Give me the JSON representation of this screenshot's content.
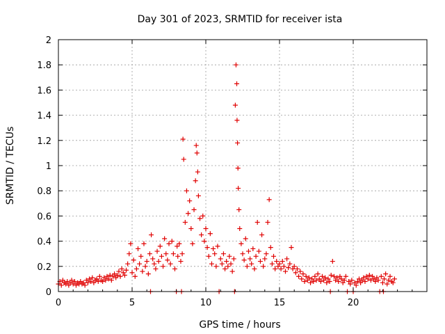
{
  "chart_data": {
    "type": "scatter",
    "title": "Day 301 of 2023, SRMTID for receiver ista",
    "xlabel": "GPS time / hours",
    "ylabel": "SRMTID / TECUs",
    "xlim": [
      0,
      25
    ],
    "ylim": [
      0,
      2
    ],
    "xticks": [
      0,
      5,
      10,
      15,
      20
    ],
    "yticks": [
      0,
      0.2,
      0.4,
      0.6,
      0.8,
      1,
      1.2,
      1.4,
      1.6,
      1.8,
      2
    ],
    "xtick_labels": [
      "0",
      "5",
      "10",
      "15",
      "20"
    ],
    "ytick_labels": [
      "0",
      "0.2",
      "0.4",
      "0.6",
      "0.8",
      "1",
      "1.2",
      "1.4",
      "1.6",
      "1.8",
      "2"
    ],
    "grid": true,
    "marker": "+",
    "color": "#e00000",
    "series": [
      {
        "name": "SRMTID",
        "points": [
          [
            0.0,
            0.06
          ],
          [
            0.1,
            0.08
          ],
          [
            0.2,
            0.05
          ],
          [
            0.3,
            0.09
          ],
          [
            0.4,
            0.07
          ],
          [
            0.5,
            0.06
          ],
          [
            0.6,
            0.08
          ],
          [
            0.7,
            0.05
          ],
          [
            0.8,
            0.07
          ],
          [
            0.9,
            0.09
          ],
          [
            1.0,
            0.06
          ],
          [
            1.1,
            0.08
          ],
          [
            1.2,
            0.05
          ],
          [
            1.3,
            0.07
          ],
          [
            1.4,
            0.06
          ],
          [
            1.5,
            0.08
          ],
          [
            1.6,
            0.06
          ],
          [
            1.7,
            0.07
          ],
          [
            1.8,
            0.05
          ],
          [
            1.9,
            0.09
          ],
          [
            2.0,
            0.07
          ],
          [
            2.1,
            0.1
          ],
          [
            2.2,
            0.08
          ],
          [
            2.3,
            0.11
          ],
          [
            2.4,
            0.07
          ],
          [
            2.5,
            0.09
          ],
          [
            2.6,
            0.1
          ],
          [
            2.7,
            0.08
          ],
          [
            2.8,
            0.12
          ],
          [
            2.9,
            0.09
          ],
          [
            3.0,
            0.08
          ],
          [
            3.1,
            0.11
          ],
          [
            3.2,
            0.09
          ],
          [
            3.3,
            0.12
          ],
          [
            3.4,
            0.1
          ],
          [
            3.5,
            0.13
          ],
          [
            3.6,
            0.09
          ],
          [
            3.7,
            0.12
          ],
          [
            3.8,
            0.14
          ],
          [
            3.9,
            0.11
          ],
          [
            4.0,
            0.13
          ],
          [
            4.1,
            0.16
          ],
          [
            4.2,
            0.12
          ],
          [
            4.3,
            0.18
          ],
          [
            4.4,
            0.15
          ],
          [
            4.5,
            0.13
          ],
          [
            4.6,
            0.17
          ],
          [
            4.7,
            0.22
          ],
          [
            4.8,
            0.3
          ],
          [
            4.9,
            0.38
          ],
          [
            5.0,
            0.15
          ],
          [
            5.1,
            0.25
          ],
          [
            5.2,
            0.12
          ],
          [
            5.3,
            0.18
          ],
          [
            5.4,
            0.34
          ],
          [
            5.5,
            0.22
          ],
          [
            5.6,
            0.28
          ],
          [
            5.7,
            0.16
          ],
          [
            5.8,
            0.38
          ],
          [
            5.9,
            0.2
          ],
          [
            6.0,
            0.24
          ],
          [
            6.1,
            0.14
          ],
          [
            6.2,
            0.3
          ],
          [
            6.25,
            0.0
          ],
          [
            6.3,
            0.45
          ],
          [
            6.4,
            0.26
          ],
          [
            6.5,
            0.22
          ],
          [
            6.6,
            0.18
          ],
          [
            6.7,
            0.32
          ],
          [
            6.8,
            0.24
          ],
          [
            6.9,
            0.36
          ],
          [
            7.0,
            0.28
          ],
          [
            7.1,
            0.2
          ],
          [
            7.2,
            0.42
          ],
          [
            7.3,
            0.3
          ],
          [
            7.4,
            0.25
          ],
          [
            7.5,
            0.38
          ],
          [
            7.6,
            0.22
          ],
          [
            7.7,
            0.4
          ],
          [
            7.8,
            0.3
          ],
          [
            7.9,
            0.18
          ],
          [
            8.0,
            0.0
          ],
          [
            8.05,
            0.36
          ],
          [
            8.1,
            0.28
          ],
          [
            8.2,
            0.38
          ],
          [
            8.3,
            0.24
          ],
          [
            8.35,
            0.0
          ],
          [
            8.4,
            0.3
          ],
          [
            8.45,
            1.21
          ],
          [
            8.5,
            1.05
          ],
          [
            8.6,
            0.55
          ],
          [
            8.7,
            0.8
          ],
          [
            8.8,
            0.62
          ],
          [
            8.9,
            0.72
          ],
          [
            9.0,
            0.5
          ],
          [
            9.1,
            0.38
          ],
          [
            9.2,
            0.65
          ],
          [
            9.3,
            0.88
          ],
          [
            9.35,
            1.16
          ],
          [
            9.4,
            1.1
          ],
          [
            9.45,
            0.95
          ],
          [
            9.5,
            0.76
          ],
          [
            9.6,
            0.58
          ],
          [
            9.7,
            0.45
          ],
          [
            9.8,
            0.6
          ],
          [
            9.9,
            0.4
          ],
          [
            10.0,
            0.5
          ],
          [
            10.1,
            0.35
          ],
          [
            10.2,
            0.28
          ],
          [
            10.3,
            0.46
          ],
          [
            10.4,
            0.22
          ],
          [
            10.5,
            0.34
          ],
          [
            10.6,
            0.3
          ],
          [
            10.7,
            0.2
          ],
          [
            10.8,
            0.36
          ],
          [
            10.9,
            0.0
          ],
          [
            11.0,
            0.26
          ],
          [
            11.1,
            0.22
          ],
          [
            11.2,
            0.3
          ],
          [
            11.3,
            0.18
          ],
          [
            11.4,
            0.24
          ],
          [
            11.5,
            0.2
          ],
          [
            11.6,
            0.28
          ],
          [
            11.7,
            0.22
          ],
          [
            11.8,
            0.16
          ],
          [
            11.9,
            0.26
          ],
          [
            11.95,
            0.0
          ],
          [
            12.0,
            1.48
          ],
          [
            12.05,
            1.8
          ],
          [
            12.1,
            1.65
          ],
          [
            12.12,
            1.36
          ],
          [
            12.15,
            1.18
          ],
          [
            12.18,
            0.98
          ],
          [
            12.2,
            0.82
          ],
          [
            12.25,
            0.65
          ],
          [
            12.3,
            0.5
          ],
          [
            12.4,
            0.38
          ],
          [
            12.5,
            0.3
          ],
          [
            12.6,
            0.25
          ],
          [
            12.7,
            0.42
          ],
          [
            12.8,
            0.2
          ],
          [
            12.9,
            0.32
          ],
          [
            13.0,
            0.26
          ],
          [
            13.1,
            0.22
          ],
          [
            13.2,
            0.34
          ],
          [
            13.3,
            0.18
          ],
          [
            13.4,
            0.28
          ],
          [
            13.5,
            0.55
          ],
          [
            13.6,
            0.32
          ],
          [
            13.7,
            0.24
          ],
          [
            13.8,
            0.45
          ],
          [
            13.9,
            0.2
          ],
          [
            14.0,
            0.26
          ],
          [
            14.1,
            0.3
          ],
          [
            14.2,
            0.55
          ],
          [
            14.3,
            0.73
          ],
          [
            14.4,
            0.35
          ],
          [
            14.5,
            0.22
          ],
          [
            14.6,
            0.28
          ],
          [
            14.7,
            0.18
          ],
          [
            14.8,
            0.24
          ],
          [
            14.9,
            0.2
          ],
          [
            15.0,
            0.22
          ],
          [
            15.1,
            0.18
          ],
          [
            15.2,
            0.24
          ],
          [
            15.3,
            0.2
          ],
          [
            15.4,
            0.16
          ],
          [
            15.5,
            0.26
          ],
          [
            15.6,
            0.19
          ],
          [
            15.7,
            0.22
          ],
          [
            15.8,
            0.35
          ],
          [
            15.9,
            0.18
          ],
          [
            16.0,
            0.2
          ],
          [
            16.1,
            0.15
          ],
          [
            16.2,
            0.18
          ],
          [
            16.3,
            0.12
          ],
          [
            16.4,
            0.16
          ],
          [
            16.5,
            0.1
          ],
          [
            16.6,
            0.14
          ],
          [
            16.7,
            0.08
          ],
          [
            16.8,
            0.12
          ],
          [
            16.9,
            0.09
          ],
          [
            17.0,
            0.11
          ],
          [
            17.1,
            0.07
          ],
          [
            17.2,
            0.1
          ],
          [
            17.3,
            0.08
          ],
          [
            17.4,
            0.12
          ],
          [
            17.5,
            0.09
          ],
          [
            17.6,
            0.14
          ],
          [
            17.7,
            0.1
          ],
          [
            17.8,
            0.08
          ],
          [
            17.9,
            0.12
          ],
          [
            18.0,
            0.09
          ],
          [
            18.1,
            0.11
          ],
          [
            18.2,
            0.07
          ],
          [
            18.3,
            0.1
          ],
          [
            18.4,
            0.08
          ],
          [
            18.45,
            0.0
          ],
          [
            18.5,
            0.13
          ],
          [
            18.6,
            0.24
          ],
          [
            18.7,
            0.12
          ],
          [
            18.8,
            0.09
          ],
          [
            18.9,
            0.11
          ],
          [
            19.0,
            0.08
          ],
          [
            19.1,
            0.12
          ],
          [
            19.2,
            0.1
          ],
          [
            19.3,
            0.07
          ],
          [
            19.4,
            0.09
          ],
          [
            19.5,
            0.12
          ],
          [
            19.6,
            0.0
          ],
          [
            19.7,
            0.08
          ],
          [
            19.8,
            0.06
          ],
          [
            19.9,
            0.09
          ],
          [
            20.0,
            0.0
          ],
          [
            20.1,
            0.07
          ],
          [
            20.2,
            0.05
          ],
          [
            20.3,
            0.08
          ],
          [
            20.4,
            0.1
          ],
          [
            20.5,
            0.07
          ],
          [
            20.6,
            0.09
          ],
          [
            20.7,
            0.11
          ],
          [
            20.8,
            0.08
          ],
          [
            20.9,
            0.12
          ],
          [
            21.0,
            0.1
          ],
          [
            21.1,
            0.13
          ],
          [
            21.2,
            0.09
          ],
          [
            21.3,
            0.12
          ],
          [
            21.4,
            0.1
          ],
          [
            21.5,
            0.08
          ],
          [
            21.6,
            0.11
          ],
          [
            21.7,
            0.09
          ],
          [
            21.8,
            0.0
          ],
          [
            21.9,
            0.12
          ],
          [
            22.0,
            0.07
          ],
          [
            22.05,
            0.0
          ],
          [
            22.1,
            0.1
          ],
          [
            22.2,
            0.14
          ],
          [
            22.3,
            0.06
          ],
          [
            22.4,
            0.09
          ],
          [
            22.5,
            0.12
          ],
          [
            22.6,
            0.08
          ],
          [
            22.7,
            0.07
          ],
          [
            22.8,
            0.1
          ]
        ]
      }
    ]
  }
}
